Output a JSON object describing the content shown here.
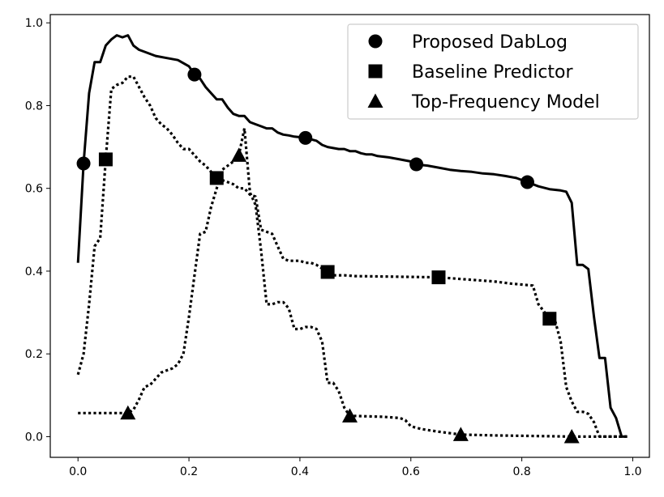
{
  "chart_data": {
    "type": "line",
    "xlim": [
      -0.05,
      1.03
    ],
    "ylim": [
      -0.05,
      1.02
    ],
    "x_ticks": [
      "0.0",
      "0.2",
      "0.4",
      "0.6",
      "0.8",
      "1.0"
    ],
    "y_ticks": [
      "0.0",
      "0.2",
      "0.4",
      "0.6",
      "0.8",
      "1.0"
    ],
    "grid": false,
    "legend_position": "top-right",
    "series": [
      {
        "name": "Proposed DabLog",
        "line_style": "solid",
        "marker": "circle",
        "points": [
          [
            0.0,
            0.42
          ],
          [
            0.01,
            0.66
          ],
          [
            0.02,
            0.83
          ],
          [
            0.03,
            0.905
          ],
          [
            0.04,
            0.905
          ],
          [
            0.05,
            0.945
          ],
          [
            0.06,
            0.96
          ],
          [
            0.07,
            0.97
          ],
          [
            0.08,
            0.965
          ],
          [
            0.09,
            0.97
          ],
          [
            0.1,
            0.945
          ],
          [
            0.11,
            0.935
          ],
          [
            0.12,
            0.93
          ],
          [
            0.14,
            0.92
          ],
          [
            0.16,
            0.915
          ],
          [
            0.18,
            0.91
          ],
          [
            0.2,
            0.895
          ],
          [
            0.21,
            0.875
          ],
          [
            0.22,
            0.865
          ],
          [
            0.23,
            0.845
          ],
          [
            0.24,
            0.83
          ],
          [
            0.25,
            0.815
          ],
          [
            0.26,
            0.815
          ],
          [
            0.27,
            0.795
          ],
          [
            0.28,
            0.78
          ],
          [
            0.29,
            0.775
          ],
          [
            0.3,
            0.775
          ],
          [
            0.31,
            0.76
          ],
          [
            0.32,
            0.755
          ],
          [
            0.33,
            0.75
          ],
          [
            0.34,
            0.745
          ],
          [
            0.35,
            0.745
          ],
          [
            0.36,
            0.735
          ],
          [
            0.37,
            0.73
          ],
          [
            0.38,
            0.728
          ],
          [
            0.39,
            0.725
          ],
          [
            0.41,
            0.722
          ],
          [
            0.43,
            0.715
          ],
          [
            0.44,
            0.705
          ],
          [
            0.45,
            0.7
          ],
          [
            0.47,
            0.695
          ],
          [
            0.48,
            0.695
          ],
          [
            0.49,
            0.69
          ],
          [
            0.5,
            0.69
          ],
          [
            0.51,
            0.685
          ],
          [
            0.52,
            0.682
          ],
          [
            0.53,
            0.682
          ],
          [
            0.54,
            0.678
          ],
          [
            0.56,
            0.675
          ],
          [
            0.58,
            0.67
          ],
          [
            0.6,
            0.665
          ],
          [
            0.61,
            0.658
          ],
          [
            0.63,
            0.655
          ],
          [
            0.65,
            0.65
          ],
          [
            0.67,
            0.645
          ],
          [
            0.69,
            0.642
          ],
          [
            0.71,
            0.64
          ],
          [
            0.73,
            0.636
          ],
          [
            0.75,
            0.634
          ],
          [
            0.77,
            0.63
          ],
          [
            0.79,
            0.625
          ],
          [
            0.81,
            0.615
          ],
          [
            0.83,
            0.605
          ],
          [
            0.85,
            0.598
          ],
          [
            0.87,
            0.595
          ],
          [
            0.88,
            0.592
          ],
          [
            0.89,
            0.565
          ],
          [
            0.9,
            0.415
          ],
          [
            0.91,
            0.415
          ],
          [
            0.92,
            0.405
          ],
          [
            0.93,
            0.29
          ],
          [
            0.94,
            0.19
          ],
          [
            0.95,
            0.19
          ],
          [
            0.96,
            0.07
          ],
          [
            0.97,
            0.045
          ],
          [
            0.98,
            0.0
          ],
          [
            0.99,
            0.0
          ]
        ],
        "marker_points": [
          [
            0.01,
            0.66
          ],
          [
            0.21,
            0.875
          ],
          [
            0.41,
            0.722
          ],
          [
            0.61,
            0.658
          ],
          [
            0.81,
            0.615
          ]
        ]
      },
      {
        "name": "Baseline Predictor",
        "line_style": "dotted",
        "marker": "square",
        "points": [
          [
            0.0,
            0.15
          ],
          [
            0.01,
            0.2
          ],
          [
            0.02,
            0.32
          ],
          [
            0.03,
            0.46
          ],
          [
            0.04,
            0.48
          ],
          [
            0.05,
            0.67
          ],
          [
            0.06,
            0.84
          ],
          [
            0.07,
            0.85
          ],
          [
            0.08,
            0.855
          ],
          [
            0.09,
            0.87
          ],
          [
            0.1,
            0.87
          ],
          [
            0.11,
            0.845
          ],
          [
            0.12,
            0.82
          ],
          [
            0.13,
            0.8
          ],
          [
            0.14,
            0.77
          ],
          [
            0.15,
            0.755
          ],
          [
            0.16,
            0.745
          ],
          [
            0.17,
            0.73
          ],
          [
            0.18,
            0.71
          ],
          [
            0.19,
            0.695
          ],
          [
            0.2,
            0.695
          ],
          [
            0.21,
            0.68
          ],
          [
            0.22,
            0.665
          ],
          [
            0.23,
            0.655
          ],
          [
            0.24,
            0.64
          ],
          [
            0.25,
            0.625
          ],
          [
            0.26,
            0.62
          ],
          [
            0.27,
            0.615
          ],
          [
            0.28,
            0.61
          ],
          [
            0.29,
            0.6
          ],
          [
            0.3,
            0.6
          ],
          [
            0.31,
            0.585
          ],
          [
            0.32,
            0.58
          ],
          [
            0.33,
            0.5
          ],
          [
            0.34,
            0.495
          ],
          [
            0.35,
            0.49
          ],
          [
            0.36,
            0.46
          ],
          [
            0.37,
            0.43
          ],
          [
            0.38,
            0.425
          ],
          [
            0.39,
            0.425
          ],
          [
            0.4,
            0.425
          ],
          [
            0.41,
            0.42
          ],
          [
            0.42,
            0.42
          ],
          [
            0.43,
            0.415
          ],
          [
            0.45,
            0.398
          ],
          [
            0.46,
            0.39
          ],
          [
            0.48,
            0.39
          ],
          [
            0.5,
            0.388
          ],
          [
            0.55,
            0.387
          ],
          [
            0.6,
            0.386
          ],
          [
            0.65,
            0.385
          ],
          [
            0.7,
            0.38
          ],
          [
            0.75,
            0.375
          ],
          [
            0.78,
            0.37
          ],
          [
            0.82,
            0.365
          ],
          [
            0.83,
            0.32
          ],
          [
            0.85,
            0.285
          ],
          [
            0.86,
            0.28
          ],
          [
            0.87,
            0.23
          ],
          [
            0.88,
            0.12
          ],
          [
            0.89,
            0.085
          ],
          [
            0.9,
            0.06
          ],
          [
            0.91,
            0.06
          ],
          [
            0.92,
            0.055
          ],
          [
            0.93,
            0.035
          ],
          [
            0.94,
            0.0
          ],
          [
            0.96,
            0.0
          ],
          [
            0.99,
            0.0
          ]
        ],
        "marker_points": [
          [
            0.05,
            0.67
          ],
          [
            0.25,
            0.625
          ],
          [
            0.45,
            0.398
          ],
          [
            0.65,
            0.385
          ],
          [
            0.85,
            0.285
          ]
        ]
      },
      {
        "name": "Top-Frequency Model",
        "line_style": "dotted",
        "marker": "triangle",
        "points": [
          [
            0.0,
            0.057
          ],
          [
            0.05,
            0.057
          ],
          [
            0.09,
            0.057
          ],
          [
            0.1,
            0.065
          ],
          [
            0.11,
            0.09
          ],
          [
            0.12,
            0.12
          ],
          [
            0.13,
            0.125
          ],
          [
            0.14,
            0.14
          ],
          [
            0.15,
            0.155
          ],
          [
            0.16,
            0.16
          ],
          [
            0.17,
            0.165
          ],
          [
            0.18,
            0.175
          ],
          [
            0.19,
            0.2
          ],
          [
            0.2,
            0.29
          ],
          [
            0.21,
            0.39
          ],
          [
            0.22,
            0.49
          ],
          [
            0.23,
            0.495
          ],
          [
            0.24,
            0.555
          ],
          [
            0.25,
            0.6
          ],
          [
            0.26,
            0.645
          ],
          [
            0.27,
            0.655
          ],
          [
            0.28,
            0.665
          ],
          [
            0.29,
            0.68
          ],
          [
            0.3,
            0.745
          ],
          [
            0.31,
            0.59
          ],
          [
            0.32,
            0.56
          ],
          [
            0.33,
            0.45
          ],
          [
            0.34,
            0.32
          ],
          [
            0.35,
            0.32
          ],
          [
            0.36,
            0.325
          ],
          [
            0.37,
            0.325
          ],
          [
            0.38,
            0.31
          ],
          [
            0.39,
            0.26
          ],
          [
            0.4,
            0.26
          ],
          [
            0.41,
            0.265
          ],
          [
            0.42,
            0.265
          ],
          [
            0.43,
            0.26
          ],
          [
            0.44,
            0.23
          ],
          [
            0.45,
            0.13
          ],
          [
            0.46,
            0.13
          ],
          [
            0.47,
            0.11
          ],
          [
            0.48,
            0.07
          ],
          [
            0.49,
            0.05
          ],
          [
            0.5,
            0.05
          ],
          [
            0.55,
            0.048
          ],
          [
            0.58,
            0.045
          ],
          [
            0.59,
            0.04
          ],
          [
            0.6,
            0.025
          ],
          [
            0.62,
            0.018
          ],
          [
            0.65,
            0.012
          ],
          [
            0.69,
            0.005
          ],
          [
            0.75,
            0.003
          ],
          [
            0.8,
            0.002
          ],
          [
            0.85,
            0.001
          ],
          [
            0.89,
            0.0
          ],
          [
            0.99,
            0.0
          ]
        ],
        "marker_points": [
          [
            0.09,
            0.057
          ],
          [
            0.29,
            0.68
          ],
          [
            0.49,
            0.05
          ],
          [
            0.69,
            0.005
          ],
          [
            0.89,
            0.0
          ]
        ]
      }
    ]
  }
}
